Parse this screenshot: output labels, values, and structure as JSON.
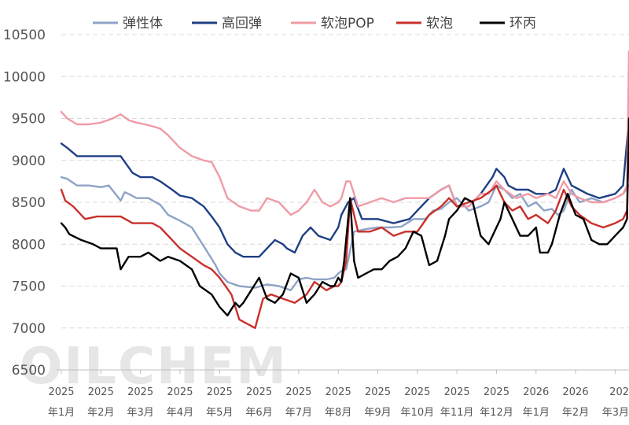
{
  "chart_data": {
    "type": "line",
    "title": "",
    "xlabel": "",
    "ylabel": "",
    "ylim": [
      6500,
      10500
    ],
    "yticks": [
      6500,
      7000,
      7500,
      8000,
      8500,
      9000,
      9500,
      10000,
      10500
    ],
    "grid": true,
    "legend_position": "top",
    "watermark": "OILCHEM",
    "x_range": [
      0,
      14.35
    ],
    "x_tick_labels": [
      {
        "year": "2025",
        "month": "年1月"
      },
      {
        "year": "2025",
        "month": "年2月"
      },
      {
        "year": "2025",
        "month": "年3月"
      },
      {
        "year": "2025",
        "month": "年4月"
      },
      {
        "year": "2025",
        "month": "年5月"
      },
      {
        "year": "2025",
        "month": "年6月"
      },
      {
        "year": "2025",
        "month": "年7月"
      },
      {
        "year": "2025",
        "month": "年8月"
      },
      {
        "year": "2025",
        "month": "年9月"
      },
      {
        "year": "2025",
        "month": "年10月"
      },
      {
        "year": "2025",
        "month": "年11月"
      },
      {
        "year": "2025",
        "month": "年12月"
      },
      {
        "year": "2026",
        "month": "年1月"
      },
      {
        "year": "2026",
        "month": "年2月"
      },
      {
        "year": "202",
        "month": "年3月"
      }
    ],
    "series": [
      {
        "name": "弹性体",
        "color": "#8ea3c6",
        "x": [
          0,
          0.15,
          0.4,
          0.7,
          1.0,
          1.2,
          1.5,
          1.6,
          1.7,
          1.9,
          2.2,
          2.5,
          2.7,
          3.0,
          3.3,
          3.5,
          3.7,
          3.9,
          4.0,
          4.2,
          4.5,
          4.9,
          5.2,
          5.5,
          5.8,
          6.0,
          6.2,
          6.4,
          6.7,
          6.9,
          7.0,
          7.08,
          7.2,
          7.4,
          7.7,
          8.0,
          8.3,
          8.6,
          8.9,
          9.2,
          9.4,
          9.6,
          9.8,
          10.0,
          10.3,
          10.6,
          10.8,
          11.0,
          11.2,
          11.4,
          11.6,
          11.8,
          12.0,
          12.2,
          12.4,
          12.55,
          12.7,
          12.9,
          13.1,
          13.4,
          13.7,
          14.0,
          14.2,
          14.35
        ],
        "values": [
          8800,
          8780,
          8700,
          8700,
          8680,
          8700,
          8520,
          8620,
          8600,
          8550,
          8550,
          8470,
          8350,
          8280,
          8200,
          8050,
          7900,
          7750,
          7650,
          7550,
          7500,
          7480,
          7520,
          7500,
          7450,
          7580,
          7600,
          7580,
          7580,
          7600,
          7650,
          7680,
          7700,
          8150,
          8180,
          8200,
          8200,
          8210,
          8300,
          8300,
          8400,
          8420,
          8500,
          8550,
          8400,
          8450,
          8500,
          8700,
          8650,
          8550,
          8600,
          8450,
          8500,
          8400,
          8420,
          8350,
          8400,
          8650,
          8500,
          8550,
          8500,
          8550,
          8600,
          8700
        ]
      },
      {
        "name": "高回弹",
        "color": "#1f3f85",
        "x": [
          0,
          0.15,
          0.4,
          0.7,
          1.0,
          1.3,
          1.5,
          1.8,
          2.0,
          2.3,
          2.5,
          2.8,
          3.0,
          3.3,
          3.6,
          3.8,
          4.0,
          4.2,
          4.4,
          4.6,
          5.0,
          5.4,
          5.6,
          5.7,
          5.9,
          6.1,
          6.3,
          6.5,
          6.8,
          7.0,
          7.08,
          7.25,
          7.4,
          7.6,
          8.0,
          8.4,
          8.8,
          9.0,
          9.3,
          9.6,
          9.8,
          10.0,
          10.3,
          10.6,
          10.9,
          11.0,
          11.2,
          11.3,
          11.5,
          11.8,
          12.0,
          12.3,
          12.5,
          12.7,
          12.9,
          13.1,
          13.3,
          13.6,
          14.0,
          14.2,
          14.35
        ],
        "values": [
          9200,
          9150,
          9050,
          9050,
          9050,
          9050,
          9050,
          8850,
          8800,
          8800,
          8750,
          8650,
          8580,
          8550,
          8450,
          8330,
          8200,
          8000,
          7900,
          7850,
          7850,
          8050,
          8000,
          7950,
          7900,
          8100,
          8200,
          8100,
          8050,
          8200,
          8350,
          8500,
          8550,
          8300,
          8300,
          8250,
          8300,
          8400,
          8550,
          8650,
          8700,
          8450,
          8450,
          8600,
          8800,
          8900,
          8800,
          8700,
          8650,
          8650,
          8600,
          8600,
          8650,
          8900,
          8700,
          8650,
          8600,
          8550,
          8600,
          8700,
          9500
        ]
      },
      {
        "name": "软泡POP",
        "color": "#ef9ba6",
        "x": [
          0,
          0.15,
          0.4,
          0.7,
          1.0,
          1.3,
          1.5,
          1.7,
          1.9,
          2.2,
          2.5,
          2.7,
          3.0,
          3.3,
          3.6,
          3.8,
          4.0,
          4.2,
          4.5,
          4.8,
          5.0,
          5.2,
          5.5,
          5.8,
          6.0,
          6.2,
          6.4,
          6.6,
          6.8,
          7.0,
          7.08,
          7.2,
          7.3,
          7.5,
          7.8,
          8.1,
          8.4,
          8.7,
          9.0,
          9.3,
          9.6,
          9.8,
          10.0,
          10.3,
          10.6,
          10.8,
          11.0,
          11.2,
          11.5,
          11.8,
          12.0,
          12.3,
          12.5,
          12.7,
          12.9,
          13.1,
          13.4,
          13.7,
          14.0,
          14.2,
          14.3,
          14.35
        ],
        "values": [
          9580,
          9500,
          9430,
          9430,
          9450,
          9500,
          9550,
          9480,
          9450,
          9420,
          9380,
          9300,
          9150,
          9050,
          9000,
          8980,
          8800,
          8550,
          8450,
          8400,
          8400,
          8550,
          8500,
          8350,
          8400,
          8500,
          8650,
          8500,
          8450,
          8500,
          8550,
          8750,
          8750,
          8450,
          8500,
          8550,
          8500,
          8550,
          8550,
          8550,
          8650,
          8700,
          8450,
          8450,
          8600,
          8600,
          8750,
          8650,
          8550,
          8600,
          8550,
          8600,
          8550,
          8750,
          8600,
          8550,
          8500,
          8500,
          8550,
          8600,
          8700,
          10300
        ]
      },
      {
        "name": "软泡",
        "color": "#c9302c",
        "x": [
          0,
          0.1,
          0.3,
          0.6,
          0.9,
          1.2,
          1.5,
          1.8,
          2.1,
          2.3,
          2.5,
          2.8,
          3.0,
          3.3,
          3.6,
          3.8,
          4.0,
          4.3,
          4.5,
          4.7,
          4.9,
          5.1,
          5.3,
          5.6,
          5.9,
          6.2,
          6.4,
          6.7,
          6.9,
          7.0,
          7.08,
          7.2,
          7.3,
          7.5,
          7.8,
          8.1,
          8.4,
          8.7,
          9.0,
          9.3,
          9.6,
          9.8,
          10.0,
          10.3,
          10.6,
          10.9,
          11.0,
          11.2,
          11.4,
          11.6,
          11.8,
          12.0,
          12.3,
          12.5,
          12.7,
          12.9,
          13.1,
          13.4,
          13.7,
          14.0,
          14.2,
          14.3,
          14.35
        ],
        "values": [
          8650,
          8520,
          8450,
          8300,
          8330,
          8330,
          8330,
          8250,
          8250,
          8250,
          8200,
          8050,
          7950,
          7850,
          7750,
          7700,
          7600,
          7400,
          7100,
          7050,
          7000,
          7350,
          7400,
          7350,
          7300,
          7400,
          7550,
          7450,
          7500,
          7500,
          7550,
          7800,
          8550,
          8150,
          8150,
          8200,
          8100,
          8150,
          8150,
          8350,
          8450,
          8550,
          8450,
          8500,
          8550,
          8650,
          8700,
          8500,
          8400,
          8450,
          8300,
          8350,
          8250,
          8400,
          8650,
          8450,
          8350,
          8250,
          8200,
          8250,
          8300,
          8400,
          9500
        ]
      },
      {
        "name": "环丙",
        "color": "#000000",
        "x": [
          0,
          0.1,
          0.2,
          0.5,
          0.8,
          1.0,
          1.2,
          1.4,
          1.5,
          1.7,
          2.0,
          2.2,
          2.5,
          2.7,
          3.0,
          3.3,
          3.5,
          3.8,
          4.0,
          4.2,
          4.4,
          4.5,
          4.6,
          4.8,
          5.0,
          5.2,
          5.4,
          5.6,
          5.8,
          6.0,
          6.2,
          6.4,
          6.6,
          6.8,
          6.9,
          7.0,
          7.08,
          7.15,
          7.3,
          7.4,
          7.5,
          7.7,
          7.9,
          8.1,
          8.3,
          8.5,
          8.7,
          8.9,
          9.1,
          9.3,
          9.5,
          9.7,
          9.8,
          10.0,
          10.2,
          10.4,
          10.6,
          10.8,
          11.0,
          11.1,
          11.2,
          11.4,
          11.6,
          11.8,
          12.0,
          12.1,
          12.3,
          12.4,
          12.6,
          12.8,
          13.0,
          13.2,
          13.4,
          13.6,
          13.8,
          14.0,
          14.2,
          14.3,
          14.35
        ],
        "values": [
          8250,
          8200,
          8120,
          8050,
          8000,
          7950,
          7950,
          7950,
          7700,
          7850,
          7850,
          7900,
          7800,
          7850,
          7800,
          7700,
          7500,
          7400,
          7250,
          7150,
          7300,
          7250,
          7300,
          7450,
          7600,
          7350,
          7300,
          7400,
          7650,
          7600,
          7300,
          7400,
          7550,
          7500,
          7500,
          7600,
          7550,
          7800,
          8550,
          7800,
          7600,
          7650,
          7700,
          7700,
          7800,
          7850,
          7950,
          8150,
          8100,
          7750,
          7800,
          8100,
          8300,
          8400,
          8550,
          8500,
          8100,
          8000,
          8200,
          8300,
          8500,
          8300,
          8100,
          8100,
          8200,
          7900,
          7900,
          8000,
          8350,
          8600,
          8350,
          8300,
          8050,
          8000,
          8000,
          8100,
          8200,
          8300,
          9500
        ]
      }
    ]
  }
}
